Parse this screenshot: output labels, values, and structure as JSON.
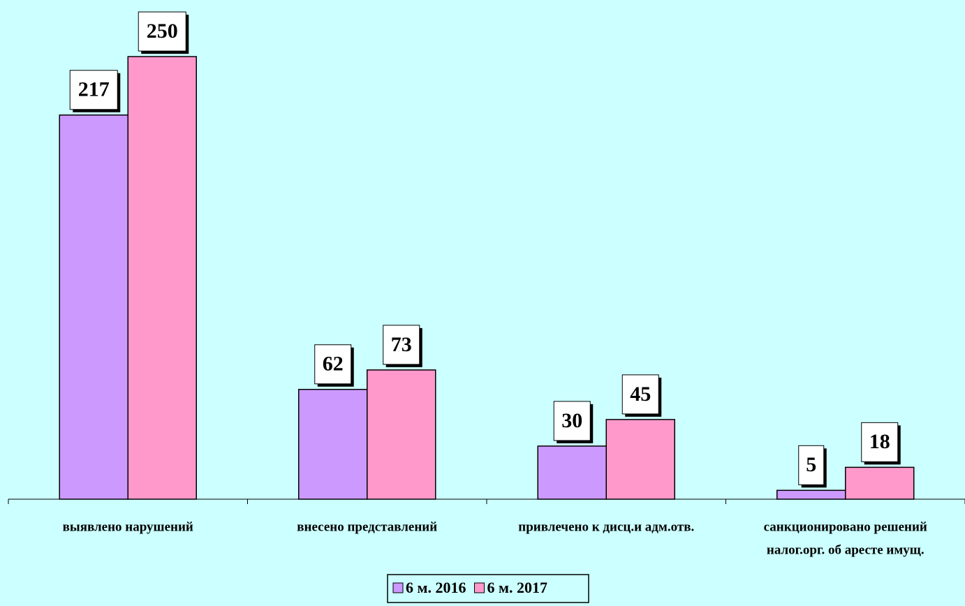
{
  "chart_data": {
    "type": "bar",
    "categories": [
      "выявлено нарушений",
      "внесено представлений",
      "привлечено к дисц.и адм.отв.",
      [
        "санкционировано решений",
        "налог.орг. об аресте имущ."
      ]
    ],
    "series": [
      {
        "name": "6 м. 2016",
        "color": "#cc99ff",
        "values": [
          217,
          62,
          30,
          5
        ]
      },
      {
        "name": "6 м. 2017",
        "color": "#ff99cc",
        "values": [
          250,
          73,
          45,
          18
        ]
      }
    ],
    "ylim": [
      0,
      280
    ],
    "legend": "bottom"
  }
}
